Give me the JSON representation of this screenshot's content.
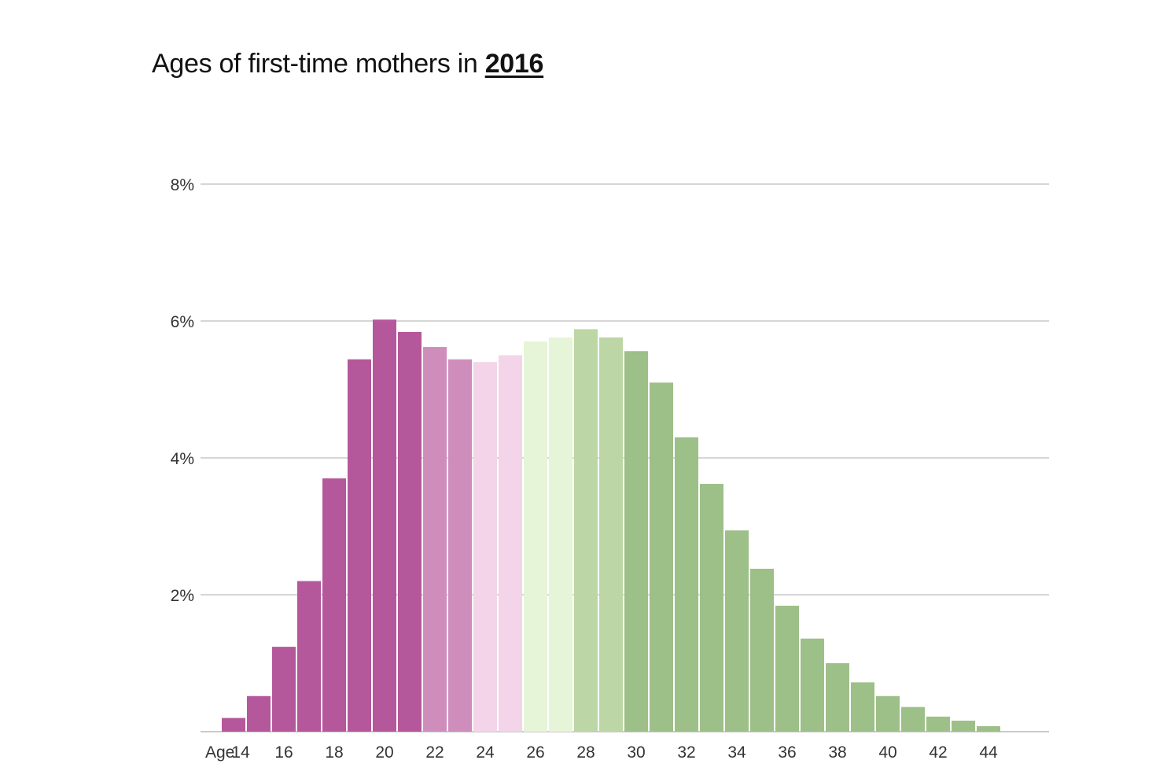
{
  "title": {
    "prefix": "Ages of first-time mothers in ",
    "year": "2016"
  },
  "chart_data": {
    "type": "bar",
    "title": "Ages of first-time mothers in 2016",
    "xlabel": "",
    "ylabel": "",
    "ylim": [
      0,
      8
    ],
    "y_ticks": [
      {
        "value": 2,
        "label": "2%"
      },
      {
        "value": 4,
        "label": "4%"
      },
      {
        "value": 6,
        "label": "6%"
      },
      {
        "value": 8,
        "label": "8%"
      }
    ],
    "x_prefix_label": "Age",
    "x_tick_labels": [
      "14",
      "16",
      "18",
      "20",
      "22",
      "24",
      "26",
      "28",
      "30",
      "32",
      "34",
      "36",
      "38",
      "40",
      "42",
      "44"
    ],
    "categories": [
      14,
      15,
      16,
      17,
      18,
      19,
      20,
      21,
      22,
      23,
      24,
      25,
      26,
      27,
      28,
      29,
      30,
      31,
      32,
      33,
      34,
      35,
      36,
      37,
      38,
      39,
      40,
      41,
      42,
      43,
      44
    ],
    "values": [
      0.2,
      0.52,
      1.24,
      2.2,
      3.7,
      5.44,
      6.02,
      5.84,
      5.62,
      5.44,
      5.4,
      5.5,
      5.7,
      5.76,
      5.88,
      5.76,
      5.56,
      5.1,
      4.3,
      3.62,
      2.94,
      2.38,
      1.84,
      1.36,
      1.0,
      0.72,
      0.52,
      0.36,
      0.22,
      0.16,
      0.08
    ],
    "colors": [
      "#b5579b",
      "#b5579b",
      "#b5579b",
      "#b5579b",
      "#b5579b",
      "#b5579b",
      "#b5579b",
      "#b5579b",
      "#cf8dbc",
      "#cf8dbc",
      "#f3d4e8",
      "#f3d4e8",
      "#e6f5d8",
      "#e6f5d8",
      "#bdd6a6",
      "#bdd6a6",
      "#9dbf88",
      "#9dbf88",
      "#9dbf88",
      "#9dbf88",
      "#9dbf88",
      "#9dbf88",
      "#9dbf88",
      "#9dbf88",
      "#9dbf88",
      "#9dbf88",
      "#9dbf88",
      "#9dbf88",
      "#9dbf88",
      "#9dbf88",
      "#9dbf88"
    ],
    "grid": true,
    "gridline_color": "#c8c8c8",
    "axis_color": "#b8b8b8"
  }
}
